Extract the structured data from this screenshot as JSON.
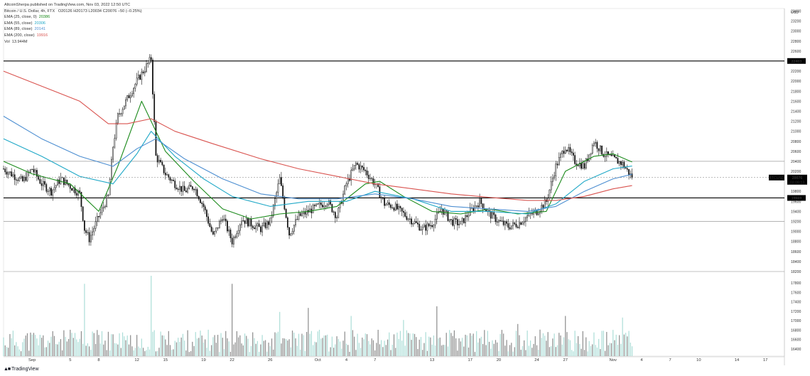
{
  "header": {
    "published": "AltcoinSherpa published on TradingView.com, Nov 03, 2022 12:50 UTC",
    "symbol_line": "Bitcoin / U.S. Dollar, 4h, FTX",
    "ohlc": "O20126 H20173 L20034 C20076 −50 (−0.25%)"
  },
  "legend": [
    {
      "label": "EMA (25, close, 0)",
      "value": "20386",
      "color": "#1b8a1b"
    },
    {
      "label": "EMA (55, close)",
      "value": "20306",
      "color": "#1fa8c7"
    },
    {
      "label": "EMA (89, close)",
      "value": "20141",
      "color": "#4c8ed1"
    },
    {
      "label": "EMA (200, close)",
      "value": "19916",
      "color": "#d9534f"
    },
    {
      "label": "Vol",
      "value": "13.944M",
      "color": "#333333"
    }
  ],
  "footer": {
    "brand": "TradingView",
    "logo_icon": "tradingview-logo-icon"
  },
  "chart_data": {
    "type": "candlestick",
    "timeframe": "4h",
    "currency_label": "USD",
    "y_ticks": [
      18200,
      18400,
      18600,
      18800,
      19000,
      19200,
      19400,
      19600,
      19800,
      20000,
      20200,
      20400,
      20600,
      20800,
      21000,
      21200,
      21400,
      21600,
      21800,
      22000,
      22200,
      22400,
      22600,
      22800,
      23000,
      23200,
      23400
    ],
    "volume_axis_ticks": [
      16400,
      16600,
      16800,
      17000,
      17200,
      17400,
      17600,
      17800
    ],
    "price_range": [
      18200,
      23450
    ],
    "x_ticks": [
      {
        "label": "Sep",
        "day": 1
      },
      {
        "label": "5",
        "day": 5
      },
      {
        "label": "8",
        "day": 8
      },
      {
        "label": "12",
        "day": 12
      },
      {
        "label": "15",
        "day": 15
      },
      {
        "label": "19",
        "day": 19
      },
      {
        "label": "22",
        "day": 22
      },
      {
        "label": "26",
        "day": 26
      },
      {
        "label": "Oct",
        "day": 31
      },
      {
        "label": "4",
        "day": 34
      },
      {
        "label": "7",
        "day": 37
      },
      {
        "label": "13",
        "day": 43
      },
      {
        "label": "17",
        "day": 47
      },
      {
        "label": "20",
        "day": 50
      },
      {
        "label": "24",
        "day": 54
      },
      {
        "label": "27",
        "day": 57
      },
      {
        "label": "Nov",
        "day": 62
      },
      {
        "label": "4",
        "day": 65
      },
      {
        "label": "7",
        "day": 68
      },
      {
        "label": "10",
        "day": 71
      },
      {
        "label": "14",
        "day": 75
      },
      {
        "label": "17",
        "day": 78
      }
    ],
    "x_start_day": -2,
    "x_end_day": 80,
    "price_path": [
      [
        -2,
        20250
      ],
      [
        0,
        20000
      ],
      [
        1,
        20250
      ],
      [
        2,
        19950
      ],
      [
        3,
        19800
      ],
      [
        4,
        20050
      ],
      [
        5,
        19900
      ],
      [
        6,
        19750
      ],
      [
        6.5,
        19050
      ],
      [
        7,
        18850
      ],
      [
        8,
        19300
      ],
      [
        9,
        19700
      ],
      [
        9.5,
        20700
      ],
      [
        10,
        21300
      ],
      [
        11,
        21650
      ],
      [
        12,
        22000
      ],
      [
        13,
        22300
      ],
      [
        13.5,
        22450
      ],
      [
        14,
        20500
      ],
      [
        15,
        20150
      ],
      [
        16,
        19950
      ],
      [
        17,
        19800
      ],
      [
        18,
        19900
      ],
      [
        19,
        19500
      ],
      [
        20,
        18900
      ],
      [
        21,
        19300
      ],
      [
        22,
        18800
      ],
      [
        23,
        19250
      ],
      [
        24,
        19150
      ],
      [
        25,
        19050
      ],
      [
        26,
        19200
      ],
      [
        27,
        20050
      ],
      [
        28,
        18950
      ],
      [
        29,
        19300
      ],
      [
        30,
        19400
      ],
      [
        31,
        19500
      ],
      [
        32,
        19600
      ],
      [
        33,
        19300
      ],
      [
        34,
        19950
      ],
      [
        35,
        20350
      ],
      [
        36,
        20200
      ],
      [
        37,
        19950
      ],
      [
        38,
        19550
      ],
      [
        39,
        19500
      ],
      [
        40,
        19350
      ],
      [
        41,
        19200
      ],
      [
        42,
        19050
      ],
      [
        43,
        19150
      ],
      [
        44,
        19450
      ],
      [
        45,
        19200
      ],
      [
        46,
        19150
      ],
      [
        47,
        19400
      ],
      [
        48,
        19600
      ],
      [
        49,
        19350
      ],
      [
        50,
        19200
      ],
      [
        51,
        19100
      ],
      [
        52,
        19150
      ],
      [
        53,
        19300
      ],
      [
        54,
        19400
      ],
      [
        55,
        19600
      ],
      [
        56,
        20300
      ],
      [
        57,
        20700
      ],
      [
        58,
        20400
      ],
      [
        59,
        20300
      ],
      [
        60,
        20800
      ],
      [
        61,
        20550
      ],
      [
        62,
        20450
      ],
      [
        63,
        20350
      ],
      [
        64,
        20076
      ]
    ],
    "series": [
      {
        "name": "EMA (25, close, 0)",
        "color": "#1b8a1b",
        "points": [
          [
            -2,
            20400
          ],
          [
            1,
            20150
          ],
          [
            5,
            19950
          ],
          [
            8,
            19400
          ],
          [
            10,
            20300
          ],
          [
            12.5,
            21600
          ],
          [
            15,
            20600
          ],
          [
            18,
            20000
          ],
          [
            21,
            19450
          ],
          [
            24,
            19250
          ],
          [
            27,
            19350
          ],
          [
            30,
            19400
          ],
          [
            33,
            19500
          ],
          [
            36,
            19950
          ],
          [
            37.5,
            20000
          ],
          [
            40,
            19700
          ],
          [
            43,
            19400
          ],
          [
            46,
            19350
          ],
          [
            49,
            19450
          ],
          [
            52,
            19350
          ],
          [
            55,
            19400
          ],
          [
            57,
            20200
          ],
          [
            60,
            20500
          ],
          [
            62,
            20550
          ],
          [
            64,
            20386
          ]
        ]
      },
      {
        "name": "EMA (55, close)",
        "color": "#1fa8c7",
        "points": [
          [
            -2,
            20850
          ],
          [
            2,
            20500
          ],
          [
            6,
            20100
          ],
          [
            9.5,
            19950
          ],
          [
            12,
            20550
          ],
          [
            13.5,
            21000
          ],
          [
            16,
            20500
          ],
          [
            19,
            20050
          ],
          [
            22,
            19700
          ],
          [
            26,
            19500
          ],
          [
            30,
            19600
          ],
          [
            34,
            19600
          ],
          [
            37,
            19800
          ],
          [
            41,
            19650
          ],
          [
            45,
            19400
          ],
          [
            49,
            19400
          ],
          [
            53,
            19350
          ],
          [
            56,
            19550
          ],
          [
            59,
            20000
          ],
          [
            62,
            20250
          ],
          [
            64,
            20306
          ]
        ]
      },
      {
        "name": "EMA (89, close)",
        "color": "#4c8ed1",
        "points": [
          [
            -2,
            21300
          ],
          [
            2,
            20850
          ],
          [
            6,
            20500
          ],
          [
            9.5,
            20300
          ],
          [
            12,
            20650
          ],
          [
            14,
            20850
          ],
          [
            17,
            20450
          ],
          [
            21,
            20050
          ],
          [
            25,
            19750
          ],
          [
            29,
            19650
          ],
          [
            33,
            19650
          ],
          [
            37,
            19750
          ],
          [
            41,
            19650
          ],
          [
            45,
            19500
          ],
          [
            49,
            19450
          ],
          [
            53,
            19400
          ],
          [
            56,
            19500
          ],
          [
            59,
            19800
          ],
          [
            62,
            20050
          ],
          [
            64,
            20141
          ]
        ]
      },
      {
        "name": "EMA (200, close)",
        "color": "#d9534f",
        "points": [
          [
            -2,
            22200
          ],
          [
            2,
            21900
          ],
          [
            6,
            21600
          ],
          [
            9,
            21150
          ],
          [
            11,
            21150
          ],
          [
            13.5,
            21250
          ],
          [
            16,
            21000
          ],
          [
            20,
            20750
          ],
          [
            25,
            20450
          ],
          [
            29,
            20250
          ],
          [
            33,
            20100
          ],
          [
            37,
            19950
          ],
          [
            41,
            19850
          ],
          [
            45,
            19750
          ],
          [
            49,
            19680
          ],
          [
            53,
            19620
          ],
          [
            56,
            19620
          ],
          [
            59,
            19700
          ],
          [
            62,
            19850
          ],
          [
            64,
            19916
          ]
        ]
      }
    ],
    "horizontal_levels": [
      {
        "price": 22403,
        "label": "22403",
        "style": "black"
      },
      {
        "price": 19669,
        "label": "19669",
        "style": "black"
      },
      {
        "price": 20400,
        "label": "",
        "style": "grey"
      },
      {
        "price": 19200,
        "label": "",
        "style": "grey"
      },
      {
        "price": 18200,
        "label": "",
        "style": "grey"
      }
    ],
    "current_price": {
      "symbol": "BTCUSD",
      "price": 20076,
      "countdown": "03:09:13"
    },
    "volume_spikes": [
      [
        6.5,
        0.9
      ],
      [
        13.5,
        1.0
      ],
      [
        22,
        0.9
      ],
      [
        27,
        0.55
      ],
      [
        30,
        0.6
      ],
      [
        34.5,
        0.5
      ],
      [
        40,
        0.45
      ],
      [
        43.5,
        0.62
      ],
      [
        52,
        0.4
      ],
      [
        57,
        0.5
      ],
      [
        63,
        0.48
      ]
    ]
  }
}
